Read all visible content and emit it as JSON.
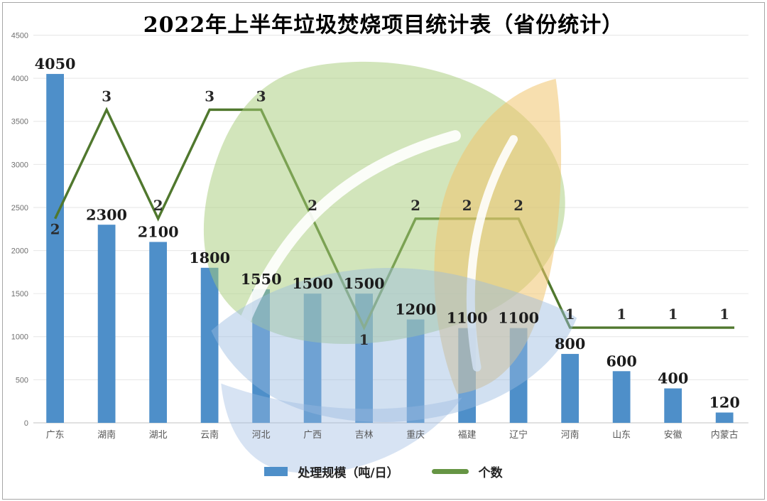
{
  "title": "2022年上半年垃圾焚烧项目统计表（省份统计）",
  "legend": {
    "bar_label": "处理规模（吨/日）",
    "line_label": "个数"
  },
  "y_axis": {
    "min": 0,
    "max": 4500,
    "step": 500,
    "ticks": [
      "0",
      "500",
      "1000",
      "1500",
      "2000",
      "2500",
      "3000",
      "3500",
      "4000",
      "4500"
    ]
  },
  "colors": {
    "bar": "#4E8FC9",
    "line": "#50782E",
    "legend_line": "#669544",
    "grid": "#e6e6e6",
    "axis": "#cfcfcf",
    "value_label": "#1b1b1b",
    "count_label": "#2a2a2a",
    "tick_label": "#6f6f6f",
    "category_label": "#555555",
    "watermark_green": "#a5cb77",
    "watermark_yellow": "#f1c56d",
    "watermark_blue": "#9abae0"
  },
  "chart_data": {
    "type": "bar",
    "combo": "bar+line",
    "title": "2022年上半年垃圾焚烧项目统计表（省份统计）",
    "categories": [
      "广东",
      "湖南",
      "湖北",
      "云南",
      "河北",
      "广西",
      "吉林",
      "重庆",
      "福建",
      "辽宁",
      "河南",
      "山东",
      "安徽",
      "内蒙古"
    ],
    "series": [
      {
        "name": "处理规模（吨/日）",
        "type": "bar",
        "values": [
          4050,
          2300,
          2100,
          1800,
          1550,
          1500,
          1500,
          1200,
          1100,
          1100,
          800,
          600,
          400,
          120
        ]
      },
      {
        "name": "个数",
        "type": "line",
        "values": [
          2,
          3,
          2,
          3,
          3,
          2,
          1,
          2,
          2,
          2,
          1,
          1,
          1,
          1
        ]
      }
    ],
    "xlabel": "",
    "ylabel": "",
    "ylim": [
      0,
      4500
    ],
    "grid": true,
    "legend_position": "bottom"
  }
}
